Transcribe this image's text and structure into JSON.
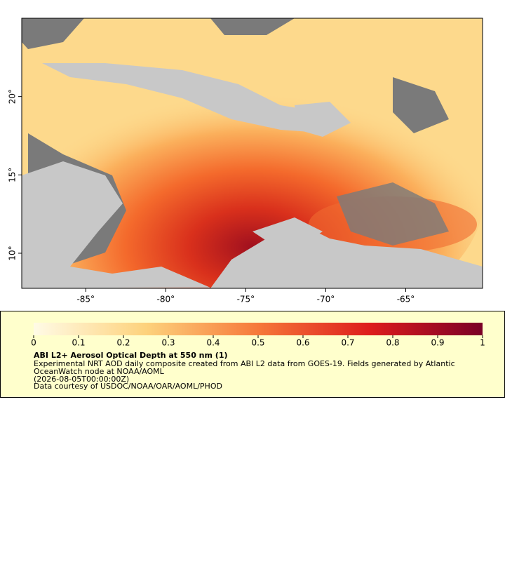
{
  "map": {
    "xlim": [
      -89,
      -60.2
    ],
    "ylim": [
      7.76,
      25
    ],
    "xticks": [
      {
        "value": -85,
        "label": "-85°"
      },
      {
        "value": -80,
        "label": "-80°"
      },
      {
        "value": -75,
        "label": "-75°"
      },
      {
        "value": -70,
        "label": "-70°"
      },
      {
        "value": -65,
        "label": "-65°"
      }
    ],
    "yticks": [
      {
        "value": 10,
        "label": "10°"
      },
      {
        "value": 15,
        "label": "15°"
      },
      {
        "value": 20,
        "label": "20°"
      }
    ]
  },
  "legend": {
    "clim": [
      0,
      1
    ],
    "ticks": [
      0,
      0.1,
      0.2,
      0.3,
      0.4,
      0.5,
      0.6,
      0.7,
      0.8,
      0.9,
      1
    ],
    "title": "ABI L2+ Aerosol Optical Depth at 550 nm (1)",
    "lines": [
      "Experimental NRT AOD daily composite created from ABI L2 data from GOES-19. Fields generated by Atlantic",
      "OceanWatch node at NOAA/AOML",
      "(2026-08-05T00:00:00Z)",
      "Data courtesy of USDOC/NOAA/OAR/AOML/PHOD"
    ]
  }
}
